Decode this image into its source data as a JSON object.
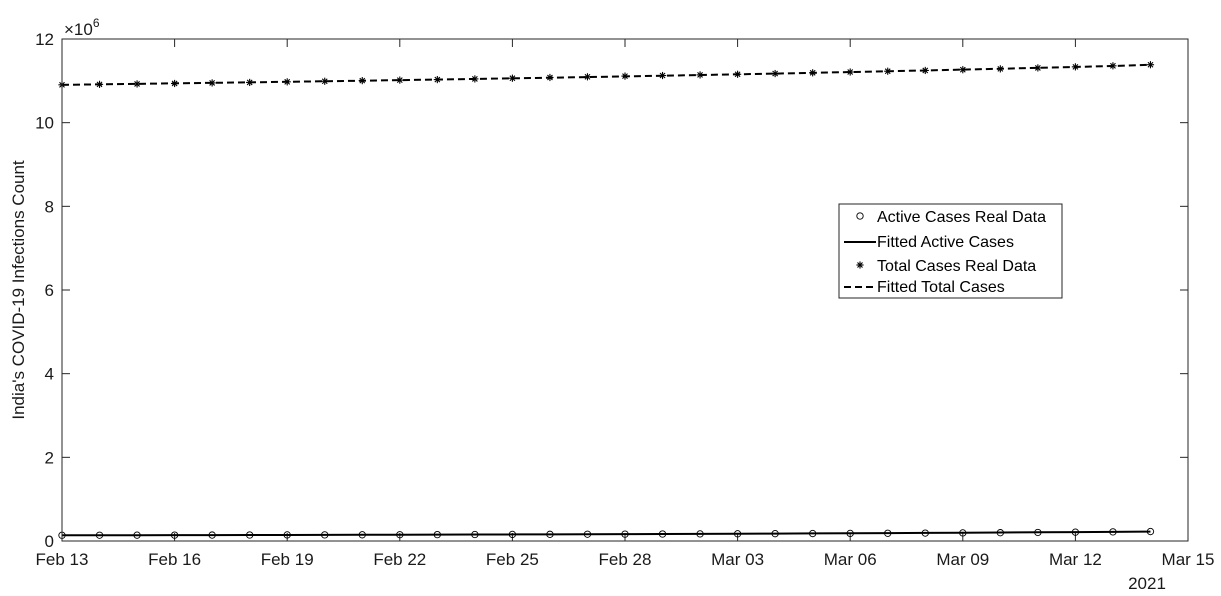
{
  "chart_data": {
    "type": "line",
    "xlabel": "",
    "ylabel": "India's COVID-19 Infections Count",
    "y_exponent_base": "×10",
    "y_exponent_power": "6",
    "x_year_label": "2021",
    "xlim": [
      "2021-02-13",
      "2021-03-15"
    ],
    "ylim": [
      0,
      12000000
    ],
    "y_ticks": [
      0,
      2000000,
      4000000,
      6000000,
      8000000,
      10000000,
      12000000
    ],
    "y_tick_labels": [
      "0",
      "2",
      "4",
      "6",
      "8",
      "10",
      "12"
    ],
    "x_ticks": [
      "2021-02-13",
      "2021-02-16",
      "2021-02-19",
      "2021-02-22",
      "2021-02-25",
      "2021-02-28",
      "2021-03-03",
      "2021-03-06",
      "2021-03-09",
      "2021-03-12",
      "2021-03-15"
    ],
    "x_tick_labels": [
      "Feb 13",
      "Feb 16",
      "Feb 19",
      "Feb 22",
      "Feb 25",
      "Feb 28",
      "Mar 03",
      "Mar 06",
      "Mar 09",
      "Mar 12",
      "Mar 15"
    ],
    "x": [
      "2021-02-13",
      "2021-02-14",
      "2021-02-15",
      "2021-02-16",
      "2021-02-17",
      "2021-02-18",
      "2021-02-19",
      "2021-02-20",
      "2021-02-21",
      "2021-02-22",
      "2021-02-23",
      "2021-02-24",
      "2021-02-25",
      "2021-02-26",
      "2021-02-27",
      "2021-02-28",
      "2021-03-01",
      "2021-03-02",
      "2021-03-03",
      "2021-03-04",
      "2021-03-05",
      "2021-03-06",
      "2021-03-07",
      "2021-03-08",
      "2021-03-09",
      "2021-03-10",
      "2021-03-11",
      "2021-03-12",
      "2021-03-13",
      "2021-03-14"
    ],
    "grid": false,
    "legend_position": "right",
    "series": [
      {
        "name": "Active Cases Real Data",
        "style": "circle-markers",
        "color": "#000000",
        "values": [
          137000,
          138000,
          139000,
          140000,
          141500,
          143000,
          145000,
          146500,
          148000,
          150000,
          152000,
          154500,
          157000,
          159500,
          162000,
          164500,
          167000,
          169500,
          172000,
          175000,
          178000,
          181500,
          185000,
          189000,
          193500,
          198500,
          204000,
          211000,
          218000,
          226000
        ]
      },
      {
        "name": "Fitted Active Cases",
        "style": "solid-line",
        "color": "#000000",
        "values": [
          136000,
          137200,
          138500,
          139800,
          141300,
          142900,
          144600,
          146300,
          148200,
          150200,
          152300,
          154600,
          157000,
          159500,
          162100,
          164900,
          167800,
          170900,
          174200,
          177600,
          181200,
          185000,
          189000,
          193300,
          197800,
          202600,
          207700,
          213100,
          218900,
          225000
        ]
      },
      {
        "name": "Total Cases Real Data",
        "style": "star-markers",
        "color": "#000000",
        "values": [
          10905000,
          10916000,
          10926000,
          10937000,
          10950000,
          10962000,
          10976000,
          10990000,
          11005000,
          11017000,
          11030000,
          11046000,
          11063000,
          11080000,
          11096000,
          11113000,
          11127000,
          11142000,
          11157000,
          11174000,
          11192000,
          11211000,
          11230000,
          11248000,
          11266000,
          11286000,
          11309000,
          11334000,
          11359000,
          11385000
        ]
      },
      {
        "name": "Fitted Total Cases",
        "style": "dashed-line",
        "color": "#000000",
        "values": [
          10904000,
          10916000,
          10928000,
          10940000,
          10952000,
          10964000,
          10977000,
          10990000,
          11003000,
          11017000,
          11031000,
          11045000,
          11060000,
          11075000,
          11090000,
          11106000,
          11122000,
          11139000,
          11156000,
          11173000,
          11191000,
          11210000,
          11229000,
          11248000,
          11268000,
          11289000,
          11310000,
          11332000,
          11355000,
          11384000
        ]
      }
    ]
  }
}
